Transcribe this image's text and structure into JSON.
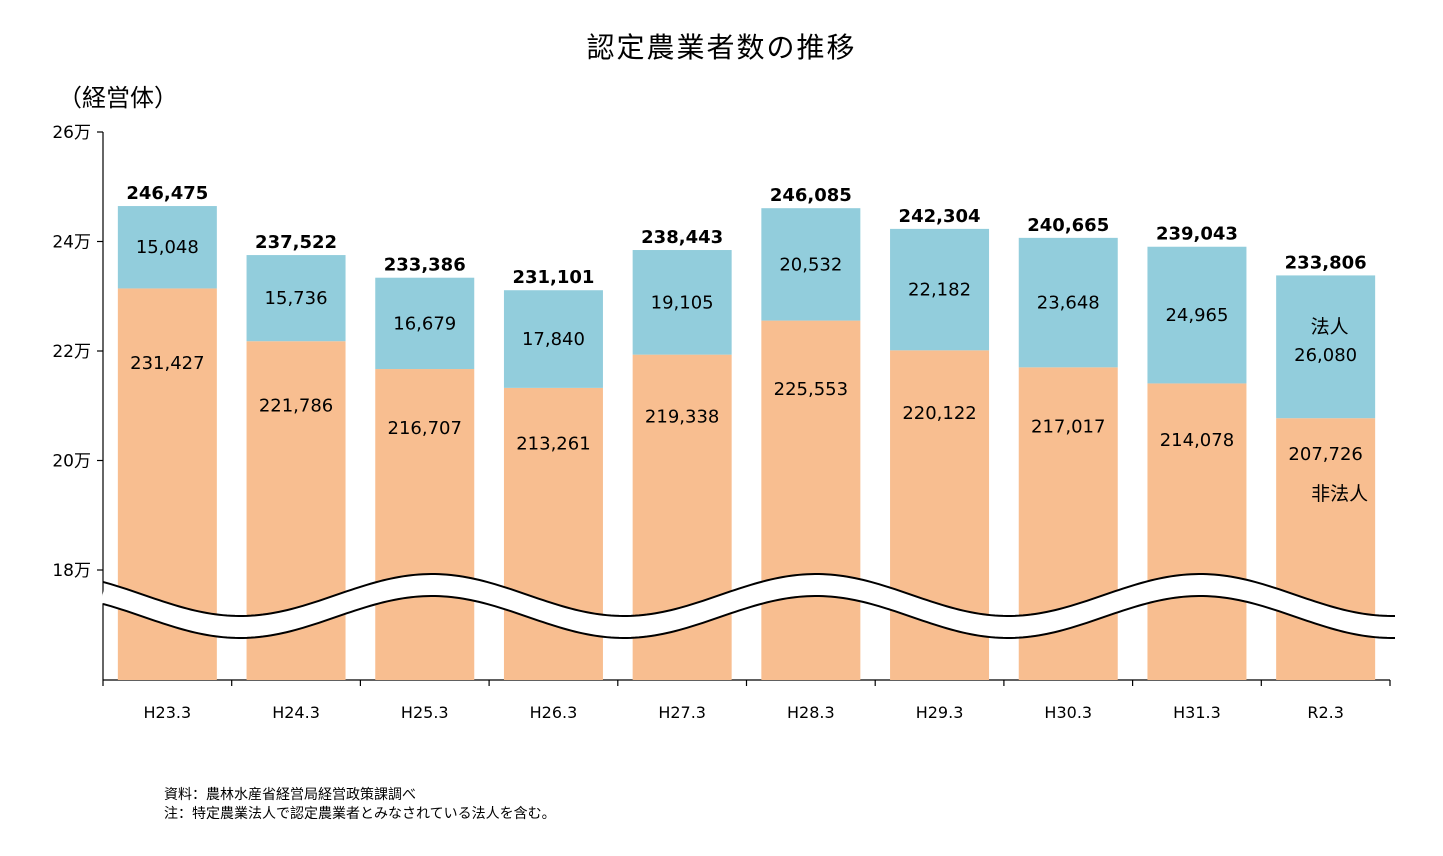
{
  "title": "認定農業者数の推移",
  "unit_label": "（経営体）",
  "chart_data": {
    "type": "bar",
    "stacked": true,
    "title": "認定農業者数の推移",
    "ylabel": "（経営体）",
    "ylim": [
      160000,
      260000
    ],
    "axis_break": [
      160000,
      180000
    ],
    "y_ticks": [
      {
        "value": 260000,
        "label": "26万"
      },
      {
        "value": 240000,
        "label": "24万"
      },
      {
        "value": 220000,
        "label": "22万"
      },
      {
        "value": 200000,
        "label": "20万"
      },
      {
        "value": 180000,
        "label": "18万"
      }
    ],
    "categories": [
      "H23.3",
      "H24.3",
      "H25.3",
      "H26.3",
      "H27.3",
      "H28.3",
      "H29.3",
      "H30.3",
      "H31.3",
      "R2.3"
    ],
    "series": [
      {
        "name": "非法人",
        "color": "#F8BE90",
        "values": [
          231427,
          221786,
          216707,
          213261,
          219338,
          225553,
          220122,
          217017,
          214078,
          207726
        ],
        "labels": [
          "231,427",
          "221,786",
          "216,707",
          "213,261",
          "219,338",
          "225,553",
          "220,122",
          "217,017",
          "214,078",
          "207,726"
        ]
      },
      {
        "name": "法人",
        "color": "#92CDDC",
        "values": [
          15048,
          15736,
          16679,
          17840,
          19105,
          20532,
          22182,
          23648,
          24965,
          26080
        ],
        "labels": [
          "15,048",
          "15,736",
          "16,679",
          "17,840",
          "19,105",
          "20,532",
          "22,182",
          "23,648",
          "24,965",
          "26,080"
        ]
      }
    ],
    "totals": [
      246475,
      237522,
      233386,
      231101,
      238443,
      246085,
      242304,
      240665,
      239043,
      233806
    ],
    "total_labels": [
      "246,475",
      "237,522",
      "233,386",
      "231,101",
      "238,443",
      "246,085",
      "242,304",
      "240,665",
      "239,043",
      "233,806"
    ],
    "legend_inline": {
      "hojin": "法人",
      "hihojin": "非法人"
    }
  },
  "notes": {
    "source": "資料：農林水産省経営局経営政策課調べ",
    "note": "注：特定農業法人で認定農業者とみなされている法人を含む。"
  }
}
